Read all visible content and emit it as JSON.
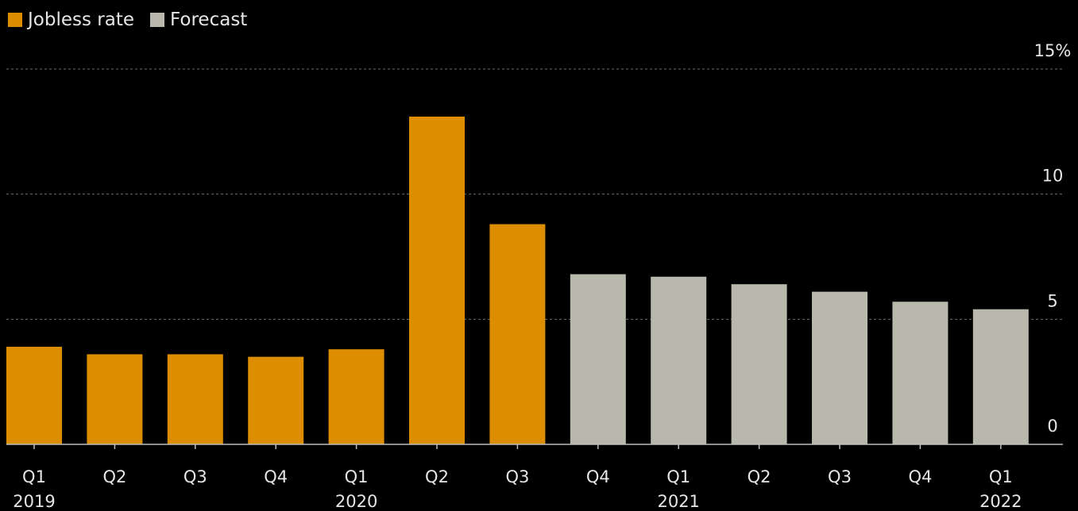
{
  "legend": [
    {
      "label": "Jobless rate",
      "color": "#dc8d00"
    },
    {
      "label": "Forecast",
      "color": "#b8b8ad"
    }
  ],
  "chart_data": {
    "type": "bar",
    "title": "",
    "xlabel": "",
    "ylabel": "",
    "ylim": [
      0,
      15
    ],
    "yticks": [
      0,
      5,
      10,
      15
    ],
    "ytick_labels": [
      "0",
      "5",
      "10",
      "15%"
    ],
    "grid": "horizontal dotted",
    "legend_position": "top-left",
    "categories": [
      "Q1 2019",
      "Q2 2019",
      "Q3 2019",
      "Q4 2019",
      "Q1 2020",
      "Q2 2020",
      "Q3 2020",
      "Q4 2020",
      "Q1 2021",
      "Q2 2021",
      "Q3 2021",
      "Q4 2021",
      "Q1 2022"
    ],
    "tick_quarters": [
      "Q1",
      "Q2",
      "Q3",
      "Q4",
      "Q1",
      "Q2",
      "Q3",
      "Q4",
      "Q1",
      "Q2",
      "Q3",
      "Q4",
      "Q1"
    ],
    "tick_years": [
      "2019",
      "",
      "",
      "",
      "2020",
      "",
      "",
      "",
      "2021",
      "",
      "",
      "",
      "2022"
    ],
    "series": [
      {
        "name": "Jobless rate",
        "color": "#dc8d00",
        "values": [
          3.9,
          3.6,
          3.6,
          3.5,
          3.8,
          13.1,
          8.8,
          null,
          null,
          null,
          null,
          null,
          null
        ]
      },
      {
        "name": "Forecast",
        "color": "#b8b8ad",
        "values": [
          null,
          null,
          null,
          null,
          null,
          null,
          null,
          6.8,
          6.7,
          6.4,
          6.1,
          5.7,
          5.4
        ]
      }
    ]
  }
}
